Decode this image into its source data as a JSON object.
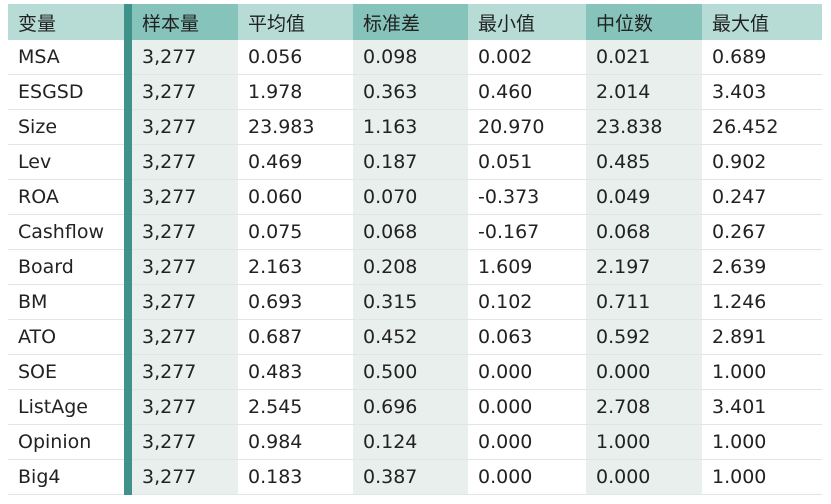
{
  "table": {
    "header": [
      "变量",
      "样本量",
      "平均值",
      "标准差",
      "最小值",
      "中位数",
      "最大值"
    ],
    "rows": [
      [
        "MSA",
        "3,277",
        "0.056",
        "0.098",
        "0.002",
        "0.021",
        "0.689"
      ],
      [
        "ESGSD",
        "3,277",
        "1.978",
        "0.363",
        "0.460",
        "2.014",
        "3.403"
      ],
      [
        "Size",
        "3,277",
        "23.983",
        "1.163",
        "20.970",
        "23.838",
        "26.452"
      ],
      [
        "Lev",
        "3,277",
        "0.469",
        "0.187",
        "0.051",
        "0.485",
        "0.902"
      ],
      [
        "ROA",
        "3,277",
        "0.060",
        "0.070",
        "-0.373",
        "0.049",
        "0.247"
      ],
      [
        "Cashflow",
        "3,277",
        "0.075",
        "0.068",
        "-0.167",
        "0.068",
        "0.267"
      ],
      [
        "Board",
        "3,277",
        "2.163",
        "0.208",
        "1.609",
        "2.197",
        "2.639"
      ],
      [
        "BM",
        "3,277",
        "0.693",
        "0.315",
        "0.102",
        "0.711",
        "1.246"
      ],
      [
        "ATO",
        "3,277",
        "0.687",
        "0.452",
        "0.063",
        "0.592",
        "2.891"
      ],
      [
        "SOE",
        "3,277",
        "0.483",
        "0.500",
        "0.000",
        "0.000",
        "1.000"
      ],
      [
        "ListAge",
        "3,277",
        "2.545",
        "0.696",
        "0.000",
        "2.708",
        "3.401"
      ],
      [
        "Opinion",
        "3,277",
        "0.984",
        "0.124",
        "0.000",
        "1.000",
        "1.000"
      ],
      [
        "Big4",
        "3,277",
        "0.183",
        "0.387",
        "0.000",
        "0.000",
        "1.000"
      ]
    ]
  }
}
